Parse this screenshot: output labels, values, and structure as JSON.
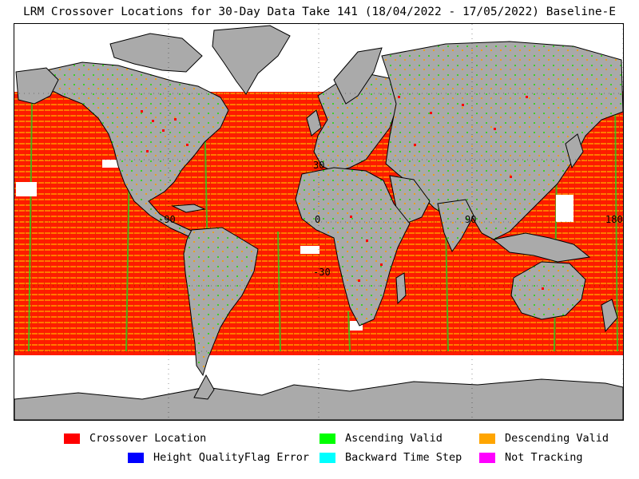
{
  "title": "LRM Crossover Locations for 30-Day Data Take 141 (18/04/2022 - 17/05/2022) Baseline-E",
  "map": {
    "lat_labels": [
      "30",
      "-30"
    ],
    "lon_labels": [
      "-90",
      "0",
      "90",
      "180"
    ],
    "colors": {
      "ocean_crossover": "#ff0000",
      "land": "#aaaaaa",
      "ice_or_nodata": "#ffffff",
      "coast": "#000000"
    }
  },
  "legend": [
    {
      "label": "Crossover Location",
      "color": "#ff0000"
    },
    {
      "label": "Ascending Valid",
      "color": "#00ff00"
    },
    {
      "label": "Descending Valid",
      "color": "#ffa500"
    },
    {
      "label": "Height QualityFlag Error",
      "color": "#0000ff"
    },
    {
      "label": "Backward Time Step",
      "color": "#00ffff"
    },
    {
      "label": "Not Tracking",
      "color": "#ff00ff"
    }
  ]
}
